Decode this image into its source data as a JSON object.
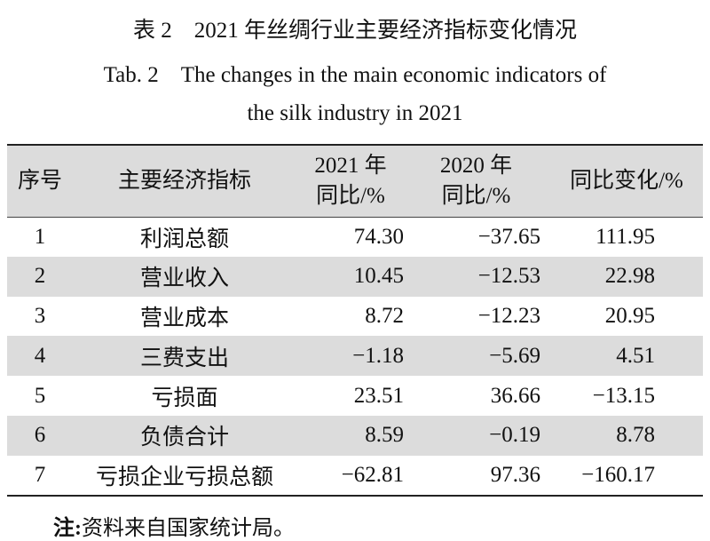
{
  "header": {
    "title_cn": "表 2　2021 年丝绸行业主要经济指标变化情况",
    "title_en": [
      "Tab. 2　The changes in the main economic indicators of",
      "the silk industry in 2021"
    ]
  },
  "table": {
    "columns": [
      [
        "序号"
      ],
      [
        "主要经济指标"
      ],
      [
        "2021 年",
        "同比/%"
      ],
      [
        "2020 年",
        "同比/%"
      ],
      [
        "同比变化/%"
      ]
    ],
    "rows": [
      [
        "1",
        "利润总额",
        "74.30",
        "−37.65",
        "111.95"
      ],
      [
        "2",
        "营业收入",
        "10.45",
        "−12.53",
        "22.98"
      ],
      [
        "3",
        "营业成本",
        "8.72",
        "−12.23",
        "20.95"
      ],
      [
        "4",
        "三费支出",
        "−1.18",
        "−5.69",
        "4.51"
      ],
      [
        "5",
        "亏损面",
        "23.51",
        "36.66",
        "−13.15"
      ],
      [
        "6",
        "负债合计",
        "8.59",
        "−0.19",
        "8.78"
      ],
      [
        "7",
        "亏损企业亏损总额",
        "−62.81",
        "97.36",
        "−160.17"
      ]
    ]
  },
  "note": {
    "label": "注:",
    "text": "资料来自国家统计局。"
  }
}
